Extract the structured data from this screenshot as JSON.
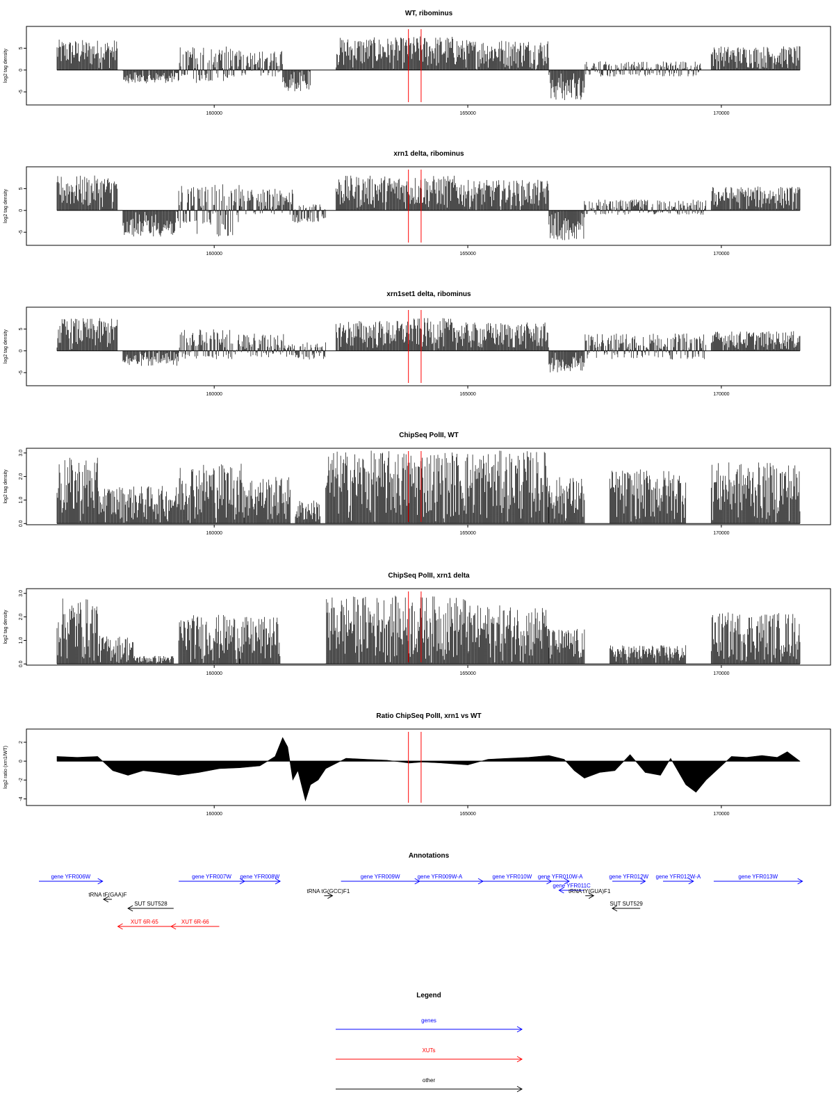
{
  "chart_data": [
    {
      "type": "bar",
      "title": "WT, ribominus",
      "ylabel": "log2 tag density",
      "xlim": [
        156500,
        171600
      ],
      "ylim": [
        -8,
        10
      ],
      "x_ticks": [
        160000,
        165000,
        170000
      ],
      "y_ticks": [
        -5,
        0,
        5
      ],
      "red_lines_x": [
        163830,
        164080
      ],
      "profile": [
        {
          "x": [
            156900,
            158100
          ],
          "range": [
            0,
            7
          ]
        },
        {
          "x": [
            158200,
            159300
          ],
          "range": [
            -3,
            0
          ]
        },
        {
          "x": [
            159300,
            160350
          ],
          "range": [
            -3,
            5.5
          ]
        },
        {
          "x": [
            160350,
            161350
          ],
          "range": [
            -1.5,
            4.5
          ]
        },
        {
          "x": [
            161350,
            161900
          ],
          "range": [
            -5,
            0
          ]
        },
        {
          "x": [
            162400,
            163850
          ],
          "range": [
            0,
            7.5
          ]
        },
        {
          "x": [
            163850,
            164800
          ],
          "range": [
            0,
            7.8
          ]
        },
        {
          "x": [
            164800,
            166600
          ],
          "range": [
            0,
            7
          ]
        },
        {
          "x": [
            166600,
            167300
          ],
          "range": [
            -7,
            0
          ]
        },
        {
          "x": [
            167300,
            169600
          ],
          "range": [
            -1.5,
            2
          ]
        },
        {
          "x": [
            169800,
            171550
          ],
          "range": [
            0,
            5.5
          ]
        }
      ]
    },
    {
      "type": "bar",
      "title": "xrn1 delta, ribominus",
      "ylabel": "log2 tag density",
      "xlim": [
        156500,
        171600
      ],
      "ylim": [
        -8,
        10
      ],
      "x_ticks": [
        160000,
        165000,
        170000
      ],
      "y_ticks": [
        -5,
        0,
        5
      ],
      "red_lines_x": [
        163830,
        164080
      ],
      "profile": [
        {
          "x": [
            156900,
            158100
          ],
          "range": [
            0,
            8
          ]
        },
        {
          "x": [
            158200,
            159300
          ],
          "range": [
            -6,
            0
          ]
        },
        {
          "x": [
            159300,
            160500
          ],
          "range": [
            -6,
            6
          ]
        },
        {
          "x": [
            160500,
            161550
          ],
          "range": [
            -1,
            5
          ]
        },
        {
          "x": [
            161550,
            162200
          ],
          "range": [
            -3,
            1.5
          ]
        },
        {
          "x": [
            162400,
            163850
          ],
          "range": [
            0,
            8
          ]
        },
        {
          "x": [
            163850,
            164800
          ],
          "range": [
            0,
            8
          ]
        },
        {
          "x": [
            164800,
            166600
          ],
          "range": [
            0,
            7
          ]
        },
        {
          "x": [
            166600,
            167300
          ],
          "range": [
            -7,
            0
          ]
        },
        {
          "x": [
            167300,
            169700
          ],
          "range": [
            -1,
            2.5
          ]
        },
        {
          "x": [
            169800,
            171550
          ],
          "range": [
            0,
            5.5
          ]
        }
      ]
    },
    {
      "type": "bar",
      "title": "xrn1set1 delta, ribominus",
      "ylabel": "log2 tag density",
      "xlim": [
        156500,
        171600
      ],
      "ylim": [
        -8,
        10
      ],
      "x_ticks": [
        160000,
        165000,
        170000
      ],
      "y_ticks": [
        -5,
        0,
        5
      ],
      "red_lines_x": [
        163830,
        164080
      ],
      "profile": [
        {
          "x": [
            156900,
            158100
          ],
          "range": [
            0,
            7.5
          ]
        },
        {
          "x": [
            158200,
            159300
          ],
          "range": [
            -3.5,
            0
          ]
        },
        {
          "x": [
            159300,
            160400
          ],
          "range": [
            -2,
            5
          ]
        },
        {
          "x": [
            160400,
            161400
          ],
          "range": [
            -1.5,
            4
          ]
        },
        {
          "x": [
            161400,
            162200
          ],
          "range": [
            -2,
            2
          ]
        },
        {
          "x": [
            162400,
            163850
          ],
          "range": [
            0,
            7
          ]
        },
        {
          "x": [
            163850,
            164800
          ],
          "range": [
            0,
            7.5
          ]
        },
        {
          "x": [
            164800,
            166600
          ],
          "range": [
            0,
            6.5
          ]
        },
        {
          "x": [
            166600,
            167300
          ],
          "range": [
            -5,
            0
          ]
        },
        {
          "x": [
            167300,
            169700
          ],
          "range": [
            -2,
            4
          ]
        },
        {
          "x": [
            169800,
            171550
          ],
          "range": [
            0,
            4.5
          ]
        }
      ]
    },
    {
      "type": "bar",
      "title": "ChipSeq PolII, WT",
      "ylabel": "log2 tag density",
      "xlim": [
        156500,
        171600
      ],
      "ylim": [
        -0.05,
        3.2
      ],
      "x_ticks": [
        160000,
        165000,
        170000
      ],
      "y_ticks": [
        0.0,
        1.0,
        2.0,
        3.0
      ],
      "y_tick_labels": [
        "0.0",
        "1.0",
        "2.0",
        "3.0"
      ],
      "red_lines_x": [
        163830,
        164080
      ],
      "profile": [
        {
          "x": [
            156900,
            157700
          ],
          "range": [
            0,
            2.8
          ]
        },
        {
          "x": [
            157700,
            159300
          ],
          "range": [
            0,
            1.6
          ]
        },
        {
          "x": [
            159300,
            160600
          ],
          "range": [
            0,
            2.6
          ]
        },
        {
          "x": [
            160600,
            161500
          ],
          "range": [
            0,
            2.0
          ]
        },
        {
          "x": [
            161600,
            162100
          ],
          "range": [
            0,
            1.0
          ]
        },
        {
          "x": [
            162200,
            163850
          ],
          "range": [
            0,
            3.1
          ]
        },
        {
          "x": [
            163850,
            166600
          ],
          "range": [
            0,
            3.1
          ]
        },
        {
          "x": [
            166600,
            167300
          ],
          "range": [
            0,
            2.0
          ]
        },
        {
          "x": [
            167800,
            169300
          ],
          "range": [
            0,
            2.3
          ]
        },
        {
          "x": [
            169800,
            171550
          ],
          "range": [
            0,
            2.6
          ]
        }
      ]
    },
    {
      "type": "bar",
      "title": "ChipSeq PolII, xrn1 delta",
      "ylabel": "log2 tag density",
      "xlim": [
        156500,
        171600
      ],
      "ylim": [
        -0.05,
        3.2
      ],
      "x_ticks": [
        160000,
        165000,
        170000
      ],
      "y_ticks": [
        0.0,
        1.0,
        2.0,
        3.0
      ],
      "y_tick_labels": [
        "0.0",
        "1.0",
        "2.0",
        "3.0"
      ],
      "red_lines_x": [
        163830,
        164080
      ],
      "profile": [
        {
          "x": [
            156900,
            157700
          ],
          "range": [
            0,
            2.8
          ]
        },
        {
          "x": [
            157700,
            158400
          ],
          "range": [
            0,
            1.2
          ]
        },
        {
          "x": [
            158400,
            159200
          ],
          "range": [
            0,
            0.35
          ]
        },
        {
          "x": [
            159300,
            160500
          ],
          "range": [
            0,
            2.1
          ]
        },
        {
          "x": [
            160500,
            161300
          ],
          "range": [
            0,
            2.0
          ]
        },
        {
          "x": [
            162200,
            163850
          ],
          "range": [
            0,
            2.9
          ]
        },
        {
          "x": [
            163850,
            165000
          ],
          "range": [
            0,
            2.9
          ]
        },
        {
          "x": [
            165000,
            166600
          ],
          "range": [
            0,
            2.5
          ]
        },
        {
          "x": [
            166600,
            167300
          ],
          "range": [
            0,
            1.5
          ]
        },
        {
          "x": [
            167800,
            169300
          ],
          "range": [
            0,
            0.8
          ]
        },
        {
          "x": [
            169800,
            171550
          ],
          "range": [
            0,
            2.2
          ]
        }
      ]
    },
    {
      "type": "area",
      "title": "Ratio ChipSeq PolII, xrn1 vs WT",
      "ylabel": "log2 ratio (xrn1/WT)",
      "xlim": [
        156500,
        171600
      ],
      "ylim": [
        -4.7,
        3.4
      ],
      "x_ticks": [
        160000,
        165000,
        170000
      ],
      "y_ticks": [
        -4,
        -2,
        0,
        2
      ],
      "red_lines_x": [
        163830,
        164080
      ],
      "x": [
        156900,
        157300,
        157700,
        158000,
        158300,
        158600,
        158900,
        159300,
        159700,
        160100,
        160500,
        160900,
        161200,
        161350,
        161450,
        161550,
        161650,
        161800,
        161900,
        162050,
        162200,
        162600,
        163000,
        163400,
        163850,
        164100,
        164500,
        165000,
        165400,
        165800,
        166200,
        166600,
        166900,
        167100,
        167300,
        167600,
        167900,
        168200,
        168500,
        168800,
        169000,
        169300,
        169500,
        169700,
        169900,
        170200,
        170500,
        170800,
        171100,
        171300,
        171550
      ],
      "y": [
        0.5,
        0.4,
        0.5,
        -1.0,
        -1.5,
        -1.0,
        -1.2,
        -1.5,
        -1.2,
        -0.8,
        -0.7,
        -0.5,
        0.5,
        2.5,
        1.5,
        -2.0,
        -1.0,
        -4.2,
        -2.5,
        -2.0,
        -0.8,
        0.3,
        0.2,
        0.1,
        -0.2,
        -0.1,
        -0.2,
        -0.4,
        0.2,
        0.3,
        0.4,
        0.6,
        0.2,
        -1.0,
        -1.8,
        -1.2,
        -1.0,
        0.7,
        -1.2,
        -1.5,
        0.3,
        -2.5,
        -3.3,
        -2.0,
        -1.0,
        0.5,
        0.4,
        0.6,
        0.4,
        1.0,
        0.0
      ]
    }
  ],
  "annotations": {
    "title": "Annotations",
    "xlim": [
      156500,
      171600
    ],
    "features": [
      {
        "label": "gene YFR006W",
        "kind": "genes",
        "dir": "right",
        "x0": 156200,
        "x1": 157800,
        "row": 0
      },
      {
        "label": "gene YFR007W",
        "kind": "genes",
        "dir": "right",
        "x0": 159300,
        "x1": 160600,
        "row": 0
      },
      {
        "label": "gene YFR008W",
        "kind": "genes",
        "dir": "right",
        "x0": 160500,
        "x1": 161300,
        "row": 0
      },
      {
        "label": "gene YFR009W",
        "kind": "genes",
        "dir": "right",
        "x0": 162500,
        "x1": 164050,
        "row": 0
      },
      {
        "label": "gene YFR009W-A",
        "kind": "genes",
        "dir": "right",
        "x0": 163600,
        "x1": 165300,
        "row": 0
      },
      {
        "label": "gene YFR010W",
        "kind": "genes",
        "dir": "right",
        "x0": 165100,
        "x1": 166650,
        "row": 0
      },
      {
        "label": "gene YFR010W-A",
        "kind": "genes",
        "dir": "right",
        "x0": 166650,
        "x1": 167000,
        "row": 0
      },
      {
        "label": "gene YFR011C",
        "kind": "genes",
        "dir": "left",
        "x0": 166800,
        "x1": 167300,
        "row": 1
      },
      {
        "label": "gene YFR012W",
        "kind": "genes",
        "dir": "right",
        "x0": 167850,
        "x1": 168500,
        "row": 0
      },
      {
        "label": "gene YFR012W-A",
        "kind": "genes",
        "dir": "right",
        "x0": 168850,
        "x1": 169450,
        "row": 0
      },
      {
        "label": "gene YFR013W",
        "kind": "genes",
        "dir": "right",
        "x0": 169850,
        "x1": 171600,
        "row": 0
      },
      {
        "label": "tRNA tF(GAA)F",
        "kind": "other",
        "dir": "left",
        "x0": 157850,
        "x1": 157950,
        "row": 2
      },
      {
        "label": "tRNA tG(GCC)F1",
        "kind": "other",
        "dir": "right",
        "x0": 162200,
        "x1": 162300,
        "row": 1.6
      },
      {
        "label": "tRNA tY(GUA)F1",
        "kind": "other",
        "dir": "right",
        "x0": 167350,
        "x1": 167450,
        "row": 1.6
      },
      {
        "label": "SUT SUT528",
        "kind": "other",
        "dir": "left",
        "x0": 158300,
        "x1": 159200,
        "row": 3
      },
      {
        "label": "SUT SUT529",
        "kind": "other",
        "dir": "left",
        "x0": 167850,
        "x1": 168400,
        "row": 3
      },
      {
        "label": "XUT 6R-65",
        "kind": "XUTs",
        "dir": "left",
        "x0": 158100,
        "x1": 159150,
        "row": 5
      },
      {
        "label": "XUT 6R-66",
        "kind": "XUTs",
        "dir": "left",
        "x0": 159150,
        "x1": 160100,
        "row": 5
      }
    ]
  },
  "legend": {
    "title": "Legend",
    "items": [
      {
        "label": "genes",
        "color": "#0000ff"
      },
      {
        "label": "XUTs",
        "color": "#ff0000"
      },
      {
        "label": "other",
        "color": "#000000"
      }
    ]
  },
  "colors": {
    "genes": "#0000ff",
    "XUTs": "#ff0000",
    "other": "#000000",
    "marker": "#ff0000",
    "bars": "#000000"
  }
}
